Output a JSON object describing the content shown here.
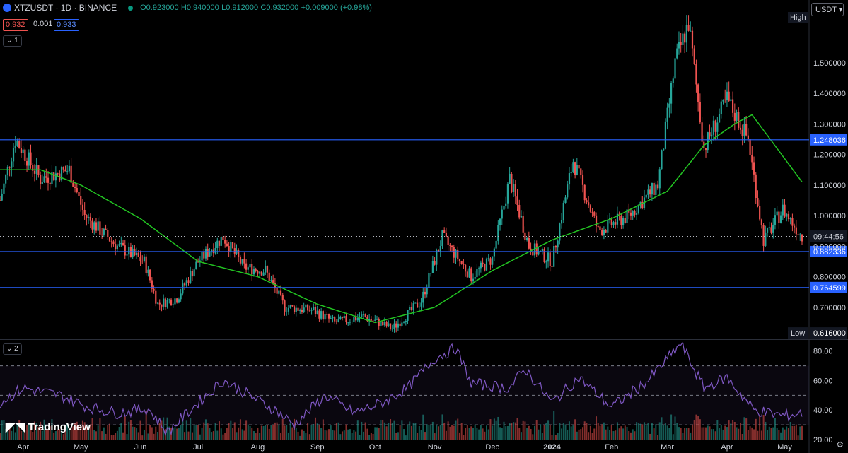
{
  "header": {
    "symbol": "XTZUSDT · 1D · BINANCE",
    "open": "O0.923000",
    "high": "H0.940000",
    "low": "L0.912000",
    "close": "C0.932000",
    "change": "+0.009000 (+0.98%)",
    "bid": "0.932",
    "spread": "0.001",
    "ask": "0.933",
    "pane1_tag": "1",
    "pane2_tag": "2",
    "currency": "USDT"
  },
  "colors": {
    "up": "#26a69a",
    "down": "#ef5350",
    "ma": "#22c322",
    "level": "#2962ff",
    "rsi": "#7e57c2",
    "bg": "#000000"
  },
  "logo": "TradingView",
  "chart_data": [
    {
      "type": "candlestick",
      "price_axis": [
        "1.500000",
        "1.400000",
        "1.300000",
        "1.200000",
        "1.100000",
        "1.000000",
        "0.900000",
        "0.800000",
        "0.700000"
      ],
      "ylim": [
        0.6,
        1.65
      ],
      "time_axis": [
        "Apr",
        "May",
        "Jun",
        "Jul",
        "Aug",
        "Sep",
        "Oct",
        "Nov",
        "Dec",
        "2024",
        "Feb",
        "Mar",
        "Apr",
        "May"
      ],
      "horizontal_levels": [
        1.248036,
        0.882336,
        0.764599
      ],
      "markers": {
        "high_label": "High",
        "low_label": "Low",
        "low_value": "0.616000",
        "last_price": "0.932000",
        "countdown": "09:44:56"
      },
      "close_path": [
        {
          "x": "Mar 20",
          "y": 1.05
        },
        {
          "x": "Mar 28",
          "y": 1.25
        },
        {
          "x": "Apr 10",
          "y": 1.12
        },
        {
          "x": "Apr 25",
          "y": 1.15
        },
        {
          "x": "May 3",
          "y": 1.0
        },
        {
          "x": "May 20",
          "y": 0.9
        },
        {
          "x": "Jun 3",
          "y": 0.85
        },
        {
          "x": "Jun 10",
          "y": 0.71
        },
        {
          "x": "Jun 20",
          "y": 0.73
        },
        {
          "x": "Jul 1",
          "y": 0.85
        },
        {
          "x": "Jul 14",
          "y": 0.93
        },
        {
          "x": "Jul 25",
          "y": 0.83
        },
        {
          "x": "Aug 5",
          "y": 0.82
        },
        {
          "x": "Aug 15",
          "y": 0.7
        },
        {
          "x": "Aug 30",
          "y": 0.69
        },
        {
          "x": "Sep 10",
          "y": 0.65
        },
        {
          "x": "Sep 25",
          "y": 0.67
        },
        {
          "x": "Oct 10",
          "y": 0.63
        },
        {
          "x": "Oct 25",
          "y": 0.72
        },
        {
          "x": "Nov 5",
          "y": 0.93
        },
        {
          "x": "Nov 20",
          "y": 0.8
        },
        {
          "x": "Dec 1",
          "y": 0.86
        },
        {
          "x": "Dec 10",
          "y": 1.12
        },
        {
          "x": "Dec 20",
          "y": 0.9
        },
        {
          "x": "Jan 1",
          "y": 0.85
        },
        {
          "x": "Jan 12",
          "y": 1.18
        },
        {
          "x": "Jan 25",
          "y": 0.95
        },
        {
          "x": "Feb 10",
          "y": 1.0
        },
        {
          "x": "Feb 25",
          "y": 1.1
        },
        {
          "x": "Mar 5",
          "y": 1.5
        },
        {
          "x": "Mar 12",
          "y": 1.63
        },
        {
          "x": "Mar 20",
          "y": 1.22
        },
        {
          "x": "Apr 1",
          "y": 1.38
        },
        {
          "x": "Apr 12",
          "y": 1.25
        },
        {
          "x": "Apr 20",
          "y": 0.92
        },
        {
          "x": "Apr 30",
          "y": 1.02
        },
        {
          "x": "May 10",
          "y": 0.932
        }
      ],
      "ma_path": [
        {
          "x": "Mar 20",
          "y": 1.15
        },
        {
          "x": "Apr 10",
          "y": 1.15
        },
        {
          "x": "May 1",
          "y": 1.1
        },
        {
          "x": "Jun 1",
          "y": 0.99
        },
        {
          "x": "Jul 1",
          "y": 0.85
        },
        {
          "x": "Aug 1",
          "y": 0.8
        },
        {
          "x": "Sep 1",
          "y": 0.71
        },
        {
          "x": "Oct 1",
          "y": 0.65
        },
        {
          "x": "Nov 1",
          "y": 0.7
        },
        {
          "x": "Dec 1",
          "y": 0.82
        },
        {
          "x": "Jan 1",
          "y": 0.92
        },
        {
          "x": "Feb 1",
          "y": 0.99
        },
        {
          "x": "Mar 1",
          "y": 1.08
        },
        {
          "x": "Mar 20",
          "y": 1.23
        },
        {
          "x": "Apr 5",
          "y": 1.3
        },
        {
          "x": "Apr 14",
          "y": 1.33
        },
        {
          "x": "May 10",
          "y": 1.11
        }
      ]
    },
    {
      "type": "line",
      "name": "RSI",
      "y_axis": [
        "80.00",
        "60.00",
        "40.00",
        "20.00"
      ],
      "ylim": [
        20,
        88
      ],
      "guides": [
        70,
        50,
        30
      ],
      "rsi_path": [
        {
          "x": "Mar 20",
          "y": 45
        },
        {
          "x": "Apr 1",
          "y": 55
        },
        {
          "x": "Apr 20",
          "y": 50
        },
        {
          "x": "May 5",
          "y": 42
        },
        {
          "x": "May 20",
          "y": 38
        },
        {
          "x": "Jun 5",
          "y": 41
        },
        {
          "x": "Jun 15",
          "y": 25
        },
        {
          "x": "Jul 1",
          "y": 45
        },
        {
          "x": "Jul 14",
          "y": 60
        },
        {
          "x": "Jul 25",
          "y": 52
        },
        {
          "x": "Aug 10",
          "y": 40
        },
        {
          "x": "Aug 20",
          "y": 30
        },
        {
          "x": "Sep 5",
          "y": 50
        },
        {
          "x": "Sep 20",
          "y": 38
        },
        {
          "x": "Oct 5",
          "y": 45
        },
        {
          "x": "Oct 18",
          "y": 55
        },
        {
          "x": "Nov 1",
          "y": 75
        },
        {
          "x": "Nov 12",
          "y": 82
        },
        {
          "x": "Nov 20",
          "y": 58
        },
        {
          "x": "Dec 10",
          "y": 55
        },
        {
          "x": "Dec 18",
          "y": 68
        },
        {
          "x": "Jan 1",
          "y": 45
        },
        {
          "x": "Jan 15",
          "y": 62
        },
        {
          "x": "Feb 1",
          "y": 42
        },
        {
          "x": "Feb 20",
          "y": 60
        },
        {
          "x": "Mar 8",
          "y": 85
        },
        {
          "x": "Mar 20",
          "y": 55
        },
        {
          "x": "Apr 1",
          "y": 62
        },
        {
          "x": "Apr 15",
          "y": 40
        },
        {
          "x": "May 1",
          "y": 36
        },
        {
          "x": "May 10",
          "y": 38
        }
      ]
    }
  ]
}
